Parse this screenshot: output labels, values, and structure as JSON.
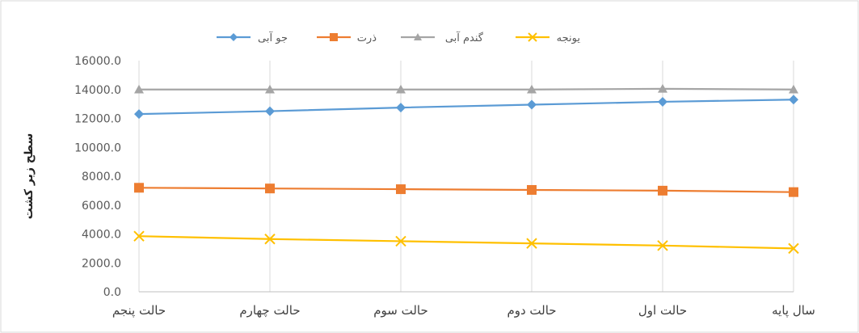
{
  "chart_data": {
    "type": "line",
    "title": "",
    "xlabel": "",
    "ylabel": "سطح زیر کشت",
    "ylim": [
      0,
      16000
    ],
    "ytick_step": 2000,
    "ytick_labels": [
      "0.0",
      "2000.0",
      "4000.0",
      "6000.0",
      "8000.0",
      "10000.0",
      "12000.0",
      "14000.0",
      "16000.0"
    ],
    "grid": "vertical",
    "legend_position": "top",
    "categories": [
      "سال پایه",
      "حالت اول",
      "حالت دوم",
      "حالت سوم",
      "حالت چهارم",
      "حالت پنجم"
    ],
    "x_axis_reversed": true,
    "series": [
      {
        "name": "جو آبی",
        "color": "#5B9BD5",
        "marker": "diamond",
        "values": [
          13300,
          13150,
          12950,
          12750,
          12500,
          12300
        ]
      },
      {
        "name": "ذرت",
        "color": "#ED7D31",
        "marker": "square",
        "values": [
          6900,
          7000,
          7050,
          7100,
          7150,
          7200
        ]
      },
      {
        "name": "گندم آبی",
        "color": "#A5A5A5",
        "marker": "triangle",
        "values": [
          14000,
          14050,
          14000,
          14000,
          14000,
          14000
        ]
      },
      {
        "name": "یونجه",
        "color": "#FFC000",
        "marker": "x",
        "values": [
          3000,
          3200,
          3350,
          3500,
          3650,
          3850
        ]
      }
    ]
  }
}
